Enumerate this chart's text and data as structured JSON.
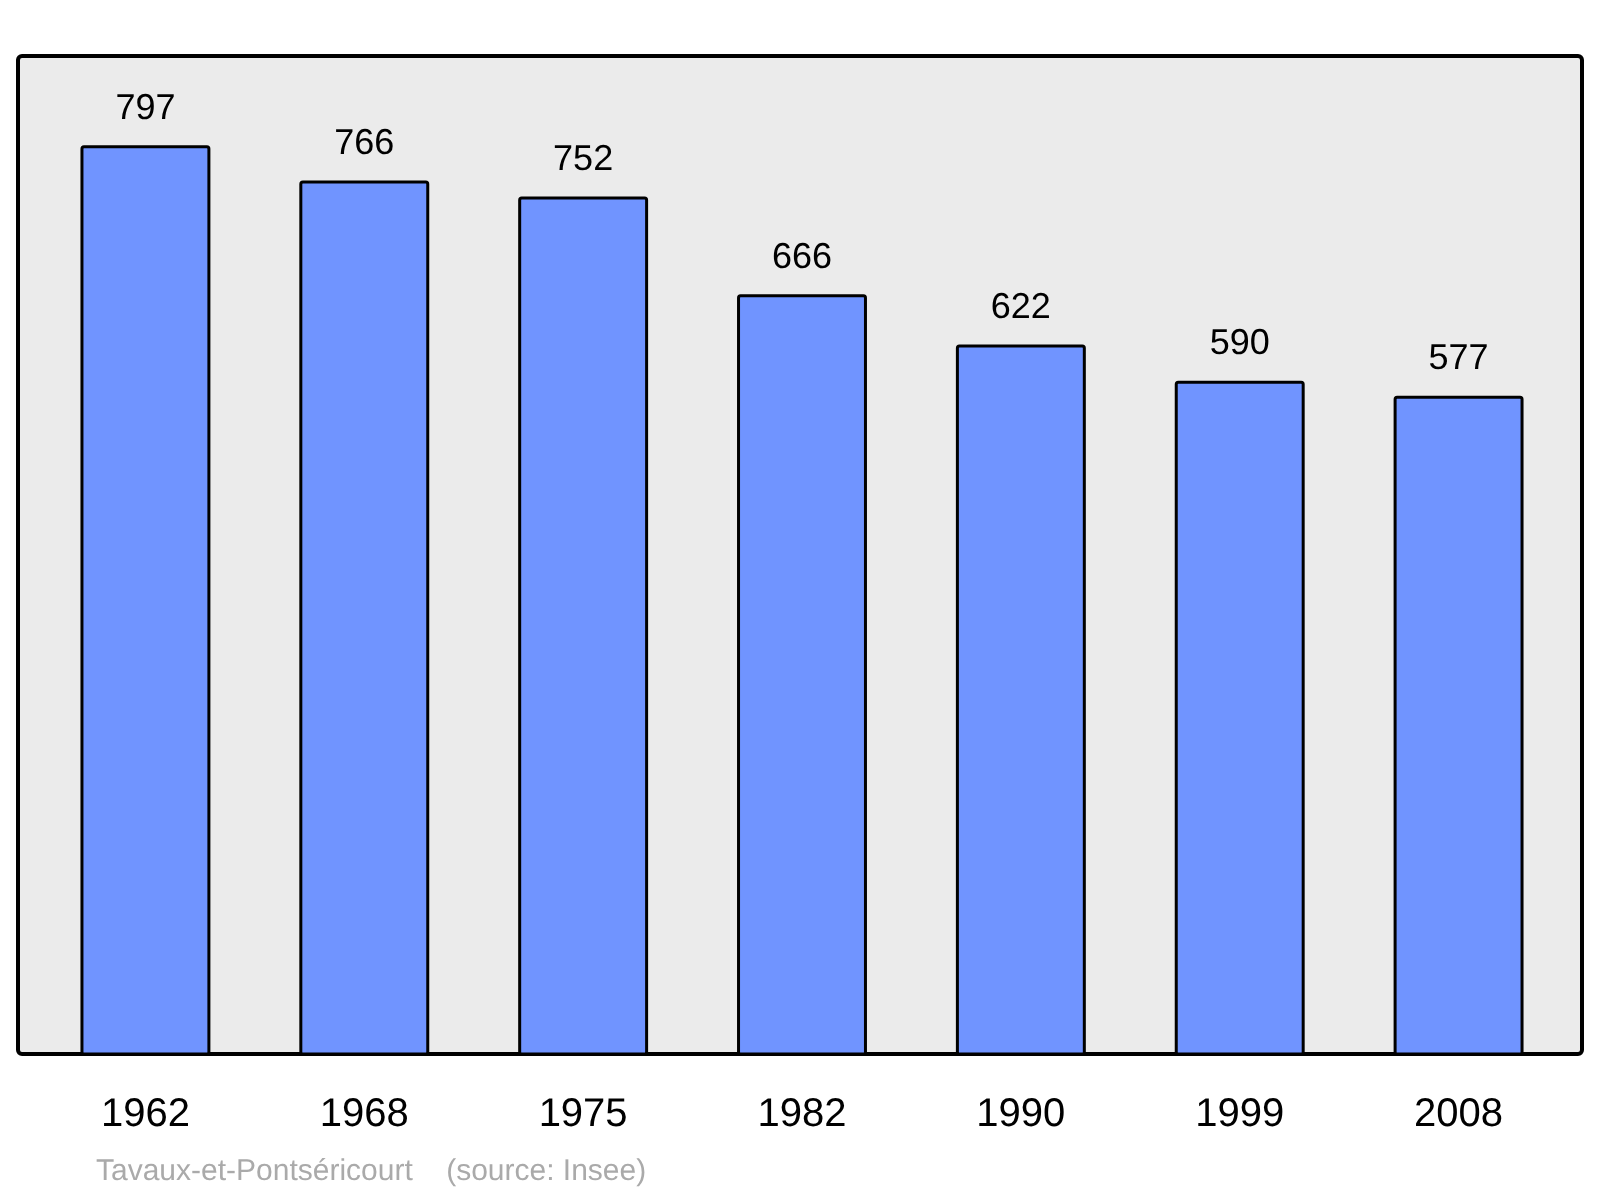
{
  "chart_data": {
    "type": "bar",
    "categories": [
      "1962",
      "1968",
      "1975",
      "1982",
      "1990",
      "1999",
      "2008"
    ],
    "values": [
      797,
      766,
      752,
      666,
      622,
      590,
      577
    ],
    "color": "#7094ff",
    "data_labels": true,
    "annotations": [
      "Tavaux-et-Pontséricourt    (source: Insee)"
    ]
  }
}
